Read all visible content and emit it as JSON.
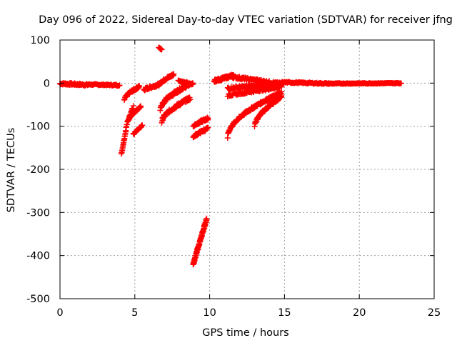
{
  "chart_data": {
    "type": "scatter",
    "title": "Day 096 of 2022, Sidereal Day-to-day VTEC variation (SDTVAR) for receiver jfng",
    "xlabel": "GPS time / hours",
    "ylabel": "SDTVAR / TECUs",
    "xlim": [
      0,
      25
    ],
    "ylim": [
      -500,
      100
    ],
    "xticks": [
      0,
      5,
      10,
      15,
      20,
      25
    ],
    "yticks": [
      100,
      0,
      -100,
      -200,
      -300,
      -400,
      -500
    ],
    "grid": true,
    "marker": "+",
    "color": "#ff0000",
    "series": [
      {
        "name": "SDTVAR",
        "tracks": [
          {
            "x0": 0.0,
            "x1": 1.9,
            "y0": -1,
            "y1": -4,
            "curve": 1,
            "step": 0.03,
            "amp": 2.5
          },
          {
            "x0": 1.9,
            "x1": 4.0,
            "y0": -3,
            "y1": -5,
            "curve": 1,
            "step": 0.04,
            "amp": 1.5
          },
          {
            "x0": 4.1,
            "x1": 4.4,
            "y0": -165,
            "y1": -110,
            "curve": 1,
            "step": 0.015,
            "amp": 2
          },
          {
            "x0": 4.4,
            "x1": 4.9,
            "y0": -110,
            "y1": -55,
            "curve": 0.7,
            "step": 0.02,
            "amp": 3
          },
          {
            "x0": 4.3,
            "x1": 5.3,
            "y0": -40,
            "y1": -8,
            "curve": 0.6,
            "step": 0.02,
            "amp": 3
          },
          {
            "x0": 4.6,
            "x1": 5.4,
            "y0": -85,
            "y1": -55,
            "curve": 0.7,
            "step": 0.02,
            "amp": 2
          },
          {
            "x0": 4.9,
            "x1": 5.5,
            "y0": -118,
            "y1": -98,
            "curve": 1,
            "step": 0.02,
            "amp": 2
          },
          {
            "x0": 5.6,
            "x1": 6.6,
            "y0": -15,
            "y1": -3,
            "curve": 1,
            "step": 0.02,
            "amp": 3
          },
          {
            "x0": 6.6,
            "x1": 6.8,
            "y0": 82,
            "y1": 78,
            "curve": 1,
            "step": 0.02,
            "amp": 1
          },
          {
            "x0": 6.6,
            "x1": 7.6,
            "y0": -5,
            "y1": 20,
            "curve": 0.7,
            "step": 0.02,
            "amp": 3
          },
          {
            "x0": 6.7,
            "x1": 8.7,
            "y0": -60,
            "y1": -2,
            "curve": 0.6,
            "step": 0.02,
            "amp": 4
          },
          {
            "x0": 6.8,
            "x1": 8.7,
            "y0": -90,
            "y1": -35,
            "curve": 0.6,
            "step": 0.02,
            "amp": 4
          },
          {
            "x0": 7.9,
            "x1": 8.9,
            "y0": 5,
            "y1": -2,
            "curve": 1,
            "step": 0.03,
            "amp": 2
          },
          {
            "x0": 8.9,
            "x1": 9.8,
            "y0": -420,
            "y1": -315,
            "curve": 1,
            "step": 0.01,
            "amp": 4
          },
          {
            "x0": 8.9,
            "x1": 9.9,
            "y0": -100,
            "y1": -82,
            "curve": 0.8,
            "step": 0.02,
            "amp": 3
          },
          {
            "x0": 8.9,
            "x1": 9.9,
            "y0": -125,
            "y1": -105,
            "curve": 0.8,
            "step": 0.02,
            "amp": 3
          },
          {
            "x0": 10.3,
            "x1": 11.6,
            "y0": 5,
            "y1": 18,
            "curve": 1,
            "step": 0.02,
            "amp": 3
          },
          {
            "x0": 11.4,
            "x1": 14.8,
            "y0": 15,
            "y1": -2,
            "curve": 1,
            "step": 0.03,
            "amp": 3
          },
          {
            "x0": 11.2,
            "x1": 14.8,
            "y0": -12,
            "y1": -2,
            "curve": 1,
            "step": 0.03,
            "amp": 3
          },
          {
            "x0": 11.2,
            "x1": 14.8,
            "y0": -28,
            "y1": -8,
            "curve": 1,
            "step": 0.03,
            "amp": 3
          },
          {
            "x0": 11.2,
            "x1": 14.8,
            "y0": -125,
            "y1": -22,
            "curve": 0.55,
            "step": 0.02,
            "amp": 3
          },
          {
            "x0": 13.0,
            "x1": 14.8,
            "y0": -100,
            "y1": -32,
            "curve": 0.6,
            "step": 0.02,
            "amp": 3
          },
          {
            "x0": 14.8,
            "x1": 18.0,
            "y0": 2,
            "y1": -1,
            "curve": 1,
            "step": 0.04,
            "amp": 1.5
          },
          {
            "x0": 18.0,
            "x1": 22.8,
            "y0": -1,
            "y1": 0,
            "curve": 1,
            "step": 0.04,
            "amp": 1
          }
        ]
      }
    ]
  }
}
